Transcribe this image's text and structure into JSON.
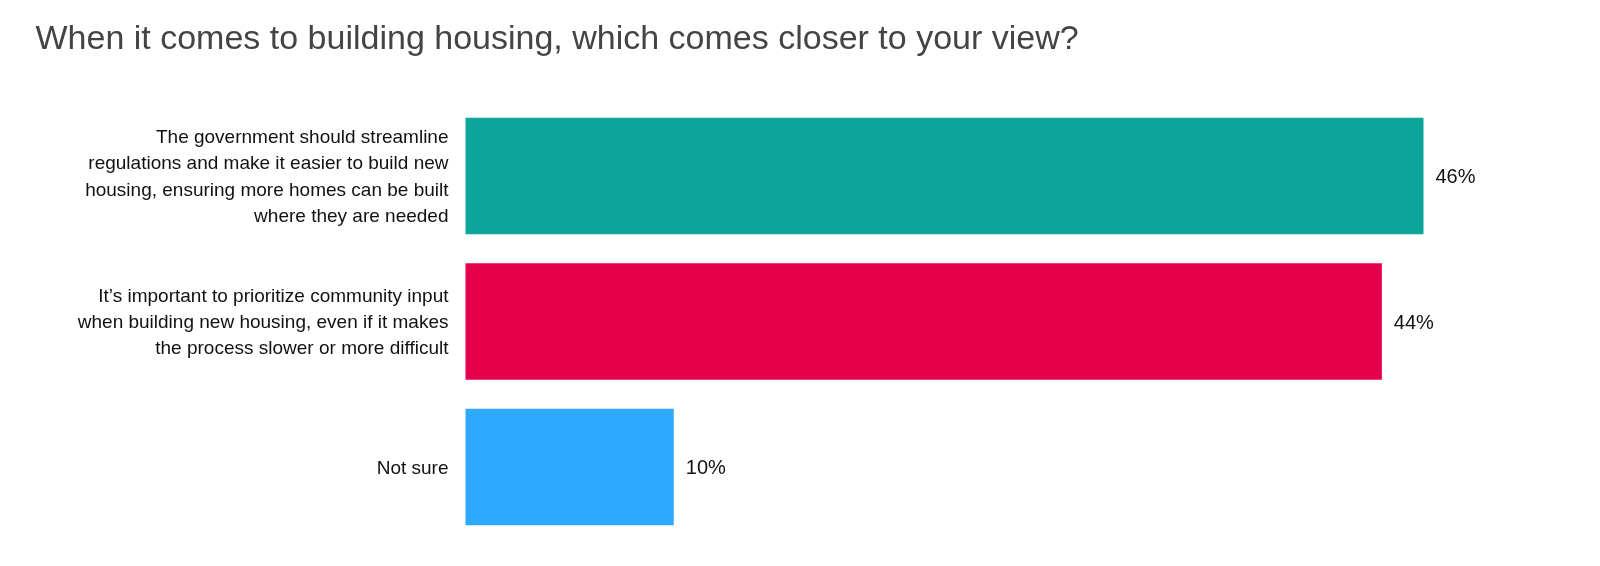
{
  "chart_data": {
    "type": "bar",
    "orientation": "horizontal",
    "title": "When it comes to building housing, which comes closer to your view?",
    "categories": [
      "The government should streamline regulations and make it easier to build new housing, ensuring more homes can be built where they are needed",
      "It’s important to prioritize community input when building new housing, even if it makes the process slower or more difficult",
      "Not sure"
    ],
    "values": [
      46,
      44,
      10
    ],
    "colors": [
      "#0da49a",
      "#e4004b",
      "#2da9ff"
    ],
    "value_labels": [
      "46%",
      "44%",
      "10%"
    ]
  }
}
